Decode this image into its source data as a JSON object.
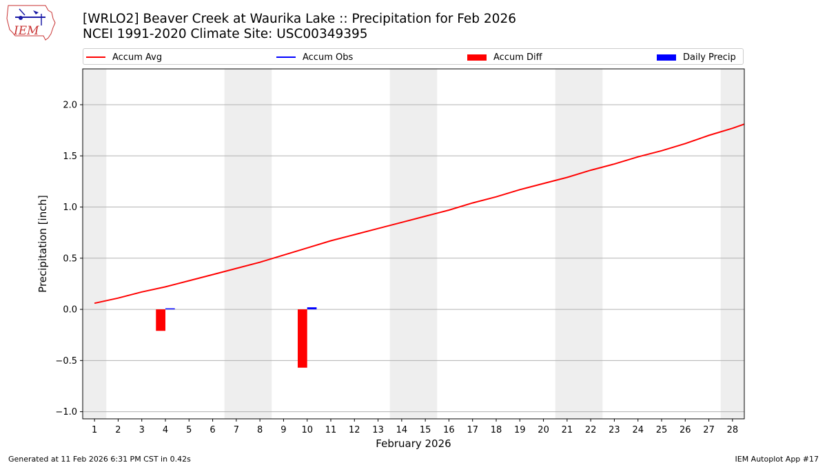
{
  "header": {
    "title_line1": "[WRLO2] Beaver Creek at Waurika Lake :: Precipitation for Feb 2026",
    "title_line2": "NCEI 1991-2020 Climate Site: USC00349395"
  },
  "logo": {
    "text": "IEM"
  },
  "footer": {
    "left": "Generated at 11 Feb 2026 6:31 PM CST in 0.42s",
    "right": "IEM Autoplot App #17"
  },
  "colors": {
    "accum_avg": "#ff0000",
    "accum_obs": "#0000ff",
    "accum_diff": "#ff0000",
    "daily_precip": "#0000ff",
    "weekend_shade": "#eeeeee",
    "grid": "#b0b0b0"
  },
  "chart_data": {
    "type": "bar",
    "xlabel": "February 2026",
    "ylabel": "Precipitation [inch]",
    "xlim": [
      0.5,
      28.5
    ],
    "ylim": [
      -1.07,
      2.35
    ],
    "yticks": [
      -1.0,
      -0.5,
      0.0,
      0.5,
      1.0,
      1.5,
      2.0
    ],
    "ytick_labels": [
      "−1.0",
      "−0.5",
      "0.0",
      "0.5",
      "1.0",
      "1.5",
      "2.0"
    ],
    "xticks": [
      1,
      2,
      3,
      4,
      5,
      6,
      7,
      8,
      9,
      10,
      11,
      12,
      13,
      14,
      15,
      16,
      17,
      18,
      19,
      20,
      21,
      22,
      23,
      24,
      25,
      26,
      27,
      28
    ],
    "weekend_days": [
      1,
      7,
      8,
      14,
      15,
      21,
      22,
      28
    ],
    "grid": "horizontal",
    "legend_position": "top",
    "legend": [
      "Accum Avg",
      "Accum Obs",
      "Accum Diff",
      "Daily Precip"
    ],
    "series": [
      {
        "name": "Accum Avg",
        "kind": "line",
        "x": [
          1,
          2,
          3,
          4,
          5,
          6,
          7,
          8,
          9,
          10,
          11,
          12,
          13,
          14,
          15,
          16,
          17,
          18,
          19,
          20,
          21,
          22,
          23,
          24,
          25,
          26,
          27,
          28,
          28.5
        ],
        "values": [
          0.06,
          0.11,
          0.17,
          0.22,
          0.28,
          0.34,
          0.4,
          0.46,
          0.53,
          0.6,
          0.67,
          0.73,
          0.79,
          0.85,
          0.91,
          0.97,
          1.04,
          1.1,
          1.17,
          1.23,
          1.29,
          1.36,
          1.42,
          1.49,
          1.55,
          1.62,
          1.7,
          1.77,
          1.81
        ]
      },
      {
        "name": "Accum Obs",
        "kind": "line",
        "x": [
          1,
          2,
          3,
          4,
          5,
          6,
          7,
          8,
          9,
          10
        ],
        "values": [
          0,
          0,
          0,
          0.01,
          0.01,
          0.01,
          0.01,
          0.01,
          0.01,
          0.03
        ]
      },
      {
        "name": "Accum Diff",
        "kind": "bar",
        "x": [
          4,
          10
        ],
        "values": [
          -0.21,
          -0.57
        ]
      },
      {
        "name": "Daily Precip",
        "kind": "bar",
        "x": [
          4,
          10
        ],
        "values": [
          0.01,
          0.02
        ]
      }
    ]
  }
}
